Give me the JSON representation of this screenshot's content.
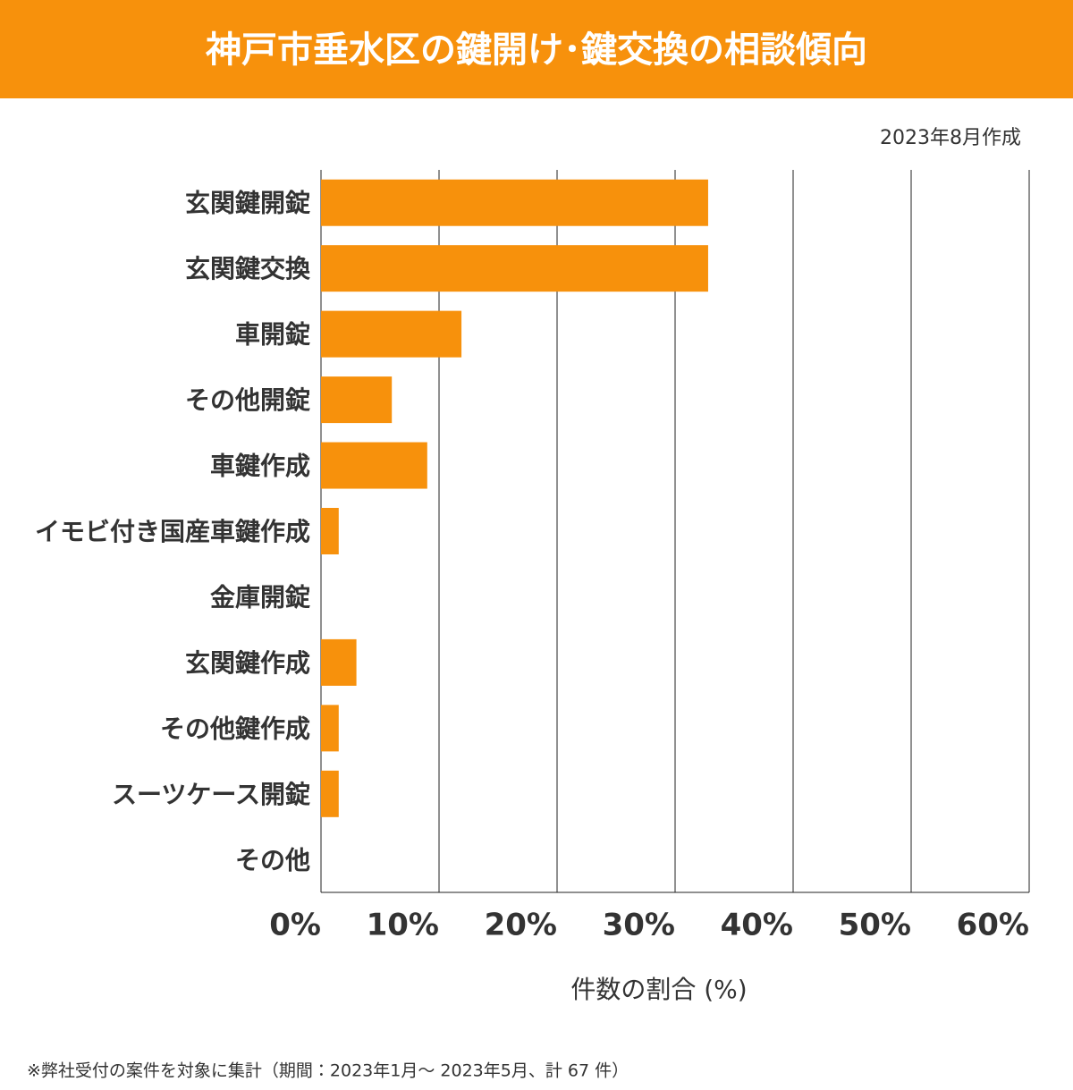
{
  "chart_data": {
    "type": "hbar",
    "title": "神戸市垂水区の鍵開け･鍵交換の相談傾向",
    "subtitle": "2023年8月作成",
    "categories": [
      "玄関鍵開錠",
      "玄関鍵交換",
      "車開錠",
      "その他開錠",
      "車鍵作成",
      "イモビ付き国産車鍵作成",
      "金庫開錠",
      "玄関鍵作成",
      "その他鍵作成",
      "スーツケース開錠",
      "その他"
    ],
    "values": [
      32.8,
      32.8,
      11.9,
      6.0,
      9.0,
      1.5,
      0,
      3.0,
      1.5,
      1.5,
      0
    ],
    "color": "#f7910c",
    "xlim": [
      0,
      60
    ],
    "xticks": [
      {
        "value": 0,
        "label": "0%"
      },
      {
        "value": 10,
        "label": "10%"
      },
      {
        "value": 20,
        "label": "20%"
      },
      {
        "value": 30,
        "label": "30%"
      },
      {
        "value": 40,
        "label": "40%"
      },
      {
        "value": 50,
        "label": "50%"
      },
      {
        "value": 60,
        "label": "60%"
      }
    ],
    "x_label": "件数の割合 (%)",
    "grid": true,
    "note": "※弊社受付の案件を対象に集計（期間：2023年1月～ 2023年5月、計 67 件）"
  }
}
